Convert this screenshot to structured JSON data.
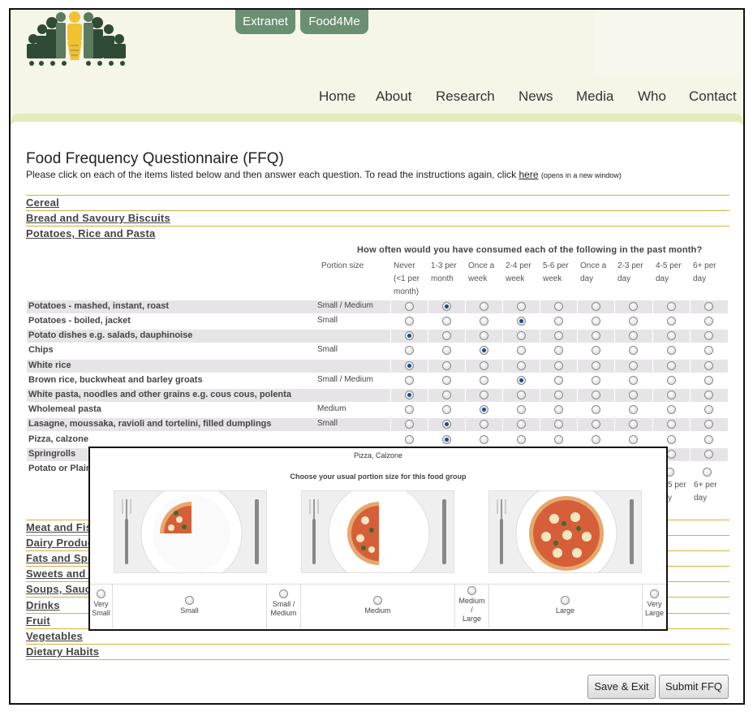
{
  "top_tabs": [
    "Extranet",
    "Food4Me"
  ],
  "nav": {
    "items": [
      "Home",
      "About",
      "Research",
      "News",
      "Media",
      "Who",
      "Contact"
    ]
  },
  "page": {
    "title": "Food Frequency Questionnaire (FFQ)",
    "instructions": "Please click on each of the items listed below and then answer each question. To read the instructions again, click",
    "instructions_link": "here",
    "instructions_note": "(opens in a new window)"
  },
  "categories_top": [
    "Cereal",
    "Bread and Savoury Biscuits",
    "Potatoes, Rice and Pasta"
  ],
  "categories_bottom": [
    "Meat and Fis",
    "Dairy Produc",
    "Fats and Spr",
    "Sweets and S",
    "Soups, Sauc",
    "Drinks",
    "Fruit",
    "Vegetables",
    "Dietary Habits"
  ],
  "question": "How often would you have consumed each of the following in the past month?",
  "table": {
    "portion_header": "Portion size",
    "frequency_headers": [
      [
        "Never",
        "(<1 per",
        "month)"
      ],
      [
        "1-3 per",
        "month"
      ],
      [
        "Once a",
        "week"
      ],
      [
        "2-4 per",
        "week"
      ],
      [
        "5-6 per",
        "week"
      ],
      [
        "Once a",
        "day"
      ],
      [
        "2-3 per",
        "day"
      ],
      [
        "4-5 per",
        "day"
      ],
      [
        "6+ per",
        "day"
      ]
    ],
    "rows": [
      {
        "label": "Potatoes - mashed, instant, roast",
        "portion": "Small / Medium",
        "selected": 1
      },
      {
        "label": "Potatoes - boiled, jacket",
        "portion": "Small",
        "selected": 3
      },
      {
        "label": "Potato dishes e.g. salads, dauphinoise",
        "portion": "",
        "selected": 0
      },
      {
        "label": "Chips",
        "portion": "Small",
        "selected": 2
      },
      {
        "label": "White rice",
        "portion": "",
        "selected": 0
      },
      {
        "label": "Brown rice, buckwheat and barley groats",
        "portion": "Small / Medium",
        "selected": 3
      },
      {
        "label": "White pasta, noodles and other grains e.g. cous cous, polenta",
        "portion": "",
        "selected": 0
      },
      {
        "label": "Wholemeal pasta",
        "portion": "Medium",
        "selected": 2
      },
      {
        "label": "Lasagne, moussaka, ravioli and tortelini, filled dumplings",
        "portion": "Small",
        "selected": 1
      },
      {
        "label": "Pizza, calzone",
        "portion": "",
        "selected": 1
      },
      {
        "label": "Springrolls",
        "portion": "",
        "selected": -1
      },
      {
        "label": "Potato or Plain",
        "portion": "",
        "selected": -1
      }
    ],
    "repeat_header_visible": [
      "5 per",
      "y",
      "6+ per",
      "day"
    ]
  },
  "popup": {
    "title": "Pizza, Calzone",
    "subtitle": "Choose your usual portion size for this food group",
    "options": [
      [
        "Very",
        "Small"
      ],
      [
        "Small"
      ],
      [
        "Small /",
        "Medium"
      ],
      [
        "Medium"
      ],
      [
        "Medium",
        "/",
        "Large"
      ],
      [
        "Large"
      ],
      [
        "Very",
        "Large"
      ]
    ]
  },
  "buttons": {
    "save_exit": "Save & Exit",
    "submit": "Submit FFQ"
  },
  "colors": {
    "tab_green": "#6b8f71",
    "header_bg": "#f5f5e8",
    "category_rule": "#d4b13b",
    "row_shade": "#e7e4e8",
    "radio_selected": "#1c4a86"
  }
}
